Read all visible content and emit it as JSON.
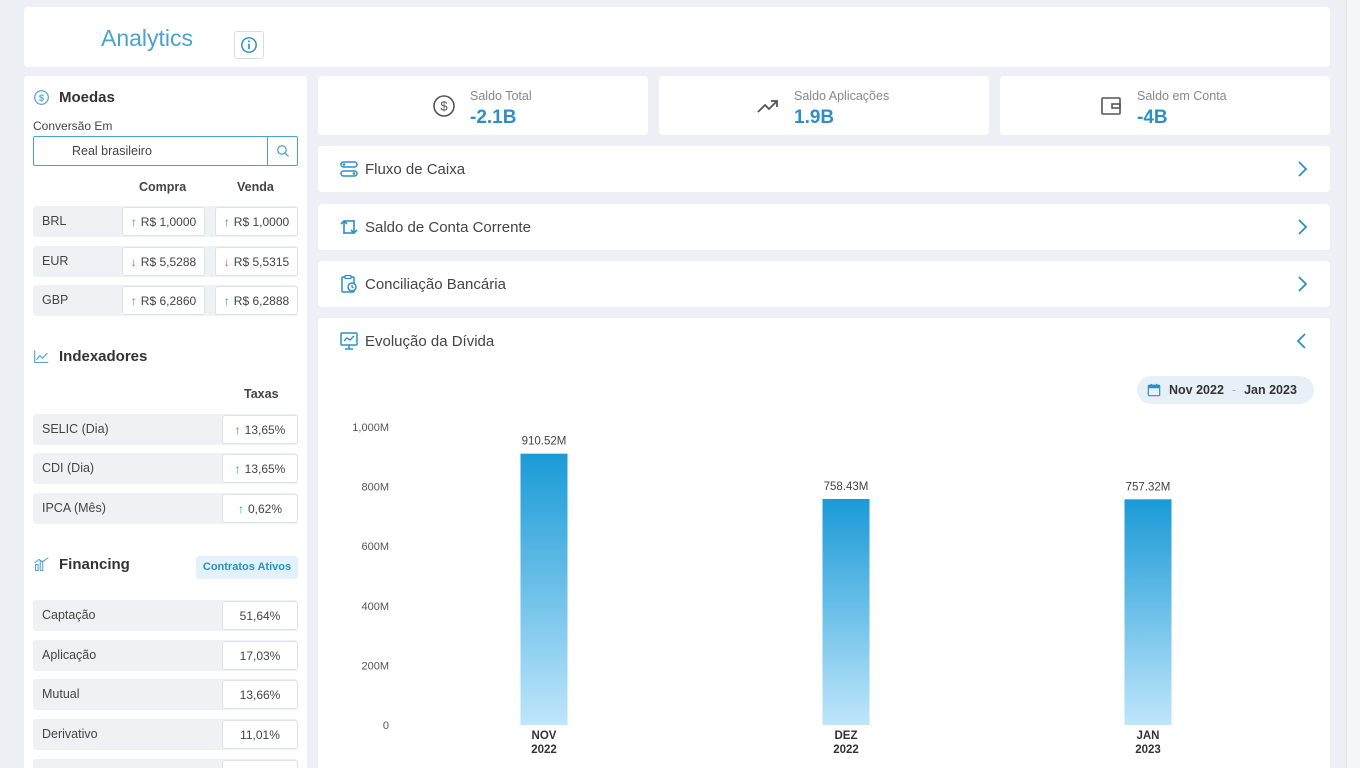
{
  "header": {
    "title": "Analytics"
  },
  "sidebar": {
    "moedas": {
      "title": "Moedas",
      "conv_label": "Conversão Em",
      "select_value": "Real brasileiro",
      "col_compra": "Compra",
      "col_venda": "Venda",
      "rows": [
        {
          "name": "BRL",
          "compra": "R$ 1,0000",
          "compra_dir": "up",
          "venda": "R$ 1,0000",
          "venda_dir": "up"
        },
        {
          "name": "EUR",
          "compra": "R$ 5,5288",
          "compra_dir": "down",
          "venda": "R$ 5,5315",
          "venda_dir": "down"
        },
        {
          "name": "GBP",
          "compra": "R$ 6,2860",
          "compra_dir": "up",
          "venda": "R$ 6,2888",
          "venda_dir": "up"
        }
      ]
    },
    "indexadores": {
      "title": "Indexadores",
      "col_taxas": "Taxas",
      "rows": [
        {
          "name": "SELIC (Dia)",
          "value": "13,65%",
          "dir": "up"
        },
        {
          "name": "CDI (Dia)",
          "value": "13,65%",
          "dir": "up"
        },
        {
          "name": "IPCA (Mês)",
          "value": "0,62%",
          "dir": "up"
        }
      ]
    },
    "financing": {
      "title": "Financing",
      "badge": "Contratos Ativos",
      "rows": [
        {
          "name": "Captação",
          "value": "51,64%"
        },
        {
          "name": "Aplicação",
          "value": "17,03%"
        },
        {
          "name": "Mutual",
          "value": "13,66%"
        },
        {
          "name": "Derivativo",
          "value": "11,01%"
        }
      ]
    }
  },
  "kpis": [
    {
      "label": "Saldo Total",
      "value": "-2.1B",
      "icon": "dollar-circle-icon"
    },
    {
      "label": "Saldo Aplicações",
      "value": "1.9B",
      "icon": "trending-up-icon"
    },
    {
      "label": "Saldo em Conta",
      "value": "-4B",
      "icon": "wallet-icon"
    }
  ],
  "accordions": [
    {
      "label": "Fluxo de Caixa",
      "icon": "flow-icon"
    },
    {
      "label": "Saldo de Conta Corrente",
      "icon": "transfer-icon"
    },
    {
      "label": "Conciliação Bancária",
      "icon": "clipboard-clock-icon"
    }
  ],
  "chart_card": {
    "title": "Evolução da Dívida",
    "date_from": "Nov 2022",
    "date_sep": "-",
    "date_to": "Jan 2023"
  },
  "colors": {
    "accent": "#2e8fc4",
    "bar_top": "#1a9ad6",
    "bar_bottom": "#bfe6fb"
  },
  "chart_data": {
    "type": "bar",
    "categories": [
      [
        "NOV",
        "2022"
      ],
      [
        "DEZ",
        "2022"
      ],
      [
        "JAN",
        "2023"
      ]
    ],
    "values": [
      910.52,
      758.43,
      757.32
    ],
    "data_labels": [
      "910.52M",
      "758.43M",
      "757.32M"
    ],
    "ylim": [
      0,
      1000
    ],
    "yticks": [
      0,
      200,
      400,
      600,
      800,
      1000
    ],
    "ytick_labels": [
      "0",
      "200M",
      "400M",
      "600M",
      "800M",
      "1,000M"
    ],
    "title": "",
    "xlabel": "",
    "ylabel": "",
    "grid": false
  }
}
